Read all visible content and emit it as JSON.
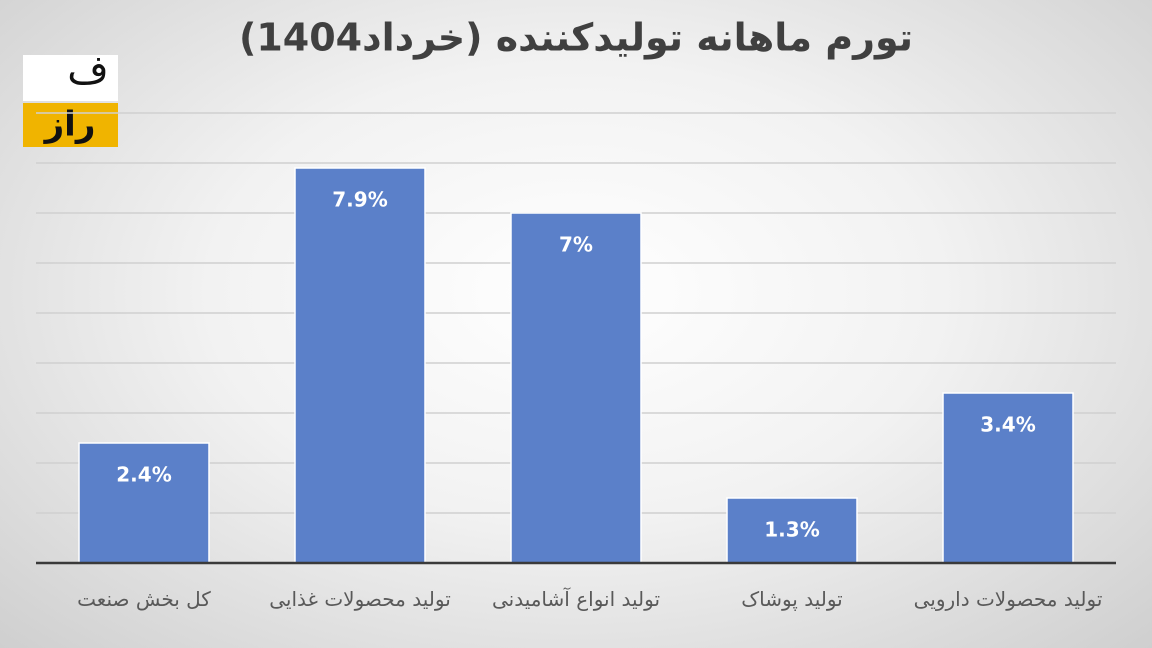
{
  "chart_data": {
    "type": "bar",
    "title": "تورم ماهانه تولیدکننده (خرداد1404)",
    "categories": [
      "کل بخش صنعت",
      "تولید محصولات غذایی",
      "تولید انواع آشامیدنی",
      "تولید پوشاک",
      "تولید محصولات دارویی"
    ],
    "values": [
      2.4,
      7.9,
      7,
      1.3,
      3.4
    ],
    "value_labels": [
      "2.4%",
      "7.9%",
      "7%",
      "1.3%",
      "3.4%"
    ],
    "color": "#5b80c9",
    "ylim": [
      0,
      9
    ],
    "yticks": [
      0,
      1,
      2,
      3,
      4,
      5,
      6,
      7,
      8,
      9
    ],
    "grid": true
  },
  "logo": {
    "top": "ف",
    "bottom": "راز"
  }
}
